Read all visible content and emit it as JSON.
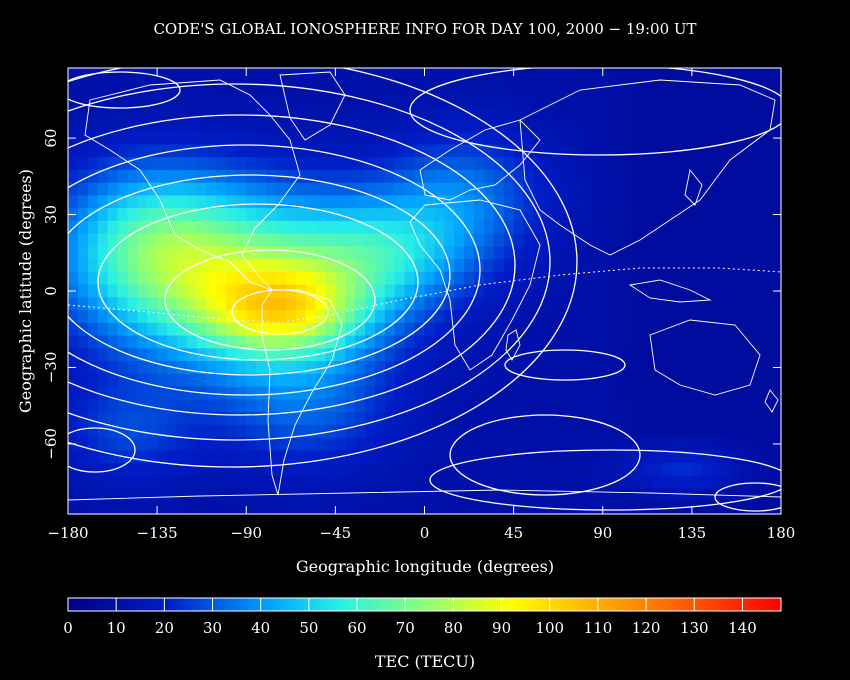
{
  "chart_data": {
    "type": "heatmap",
    "title": "CODE'S GLOBAL IONOSPHERE INFO FOR DAY 100, 2000 − 19:00 UT",
    "xlabel": "Geographic longitude (degrees)",
    "ylabel": "Geographic latitude (degrees)",
    "xlim": [
      -180,
      180
    ],
    "ylim": [
      -87.5,
      87.5
    ],
    "x_ticks": [
      "−180",
      "−135",
      "−90",
      "−45",
      "0",
      "45",
      "90",
      "135",
      "180"
    ],
    "x_tick_values": [
      -180,
      -135,
      -90,
      -45,
      0,
      45,
      90,
      135,
      180
    ],
    "y_ticks": [
      "−60",
      "−30",
      "0",
      "30",
      "60"
    ],
    "y_tick_values": [
      -60,
      -30,
      0,
      30,
      60
    ],
    "colorbar": {
      "label": "TEC (TECU)",
      "range": [
        0,
        148
      ],
      "tick_labels": [
        "0",
        "10",
        "20",
        "30",
        "40",
        "50",
        "60",
        "70",
        "80",
        "90",
        "100",
        "110",
        "120",
        "130",
        "140"
      ],
      "tick_values": [
        0,
        10,
        20,
        30,
        40,
        50,
        60,
        70,
        80,
        90,
        100,
        110,
        120,
        130,
        140
      ]
    },
    "features": {
      "tec_maxima": [
        {
          "lon": -75,
          "lat": -8,
          "tec": 120
        },
        {
          "lon": -110,
          "lat": 12,
          "tec": 88
        }
      ],
      "tec_minima": [
        {
          "lon": 115,
          "lat": 50,
          "tec": 12
        },
        {
          "lon": 60,
          "lat": -60,
          "tec": 10
        },
        {
          "lon": 90,
          "lat": -25,
          "tec": 12
        }
      ],
      "contour_lines": "white",
      "continent_outlines": "white"
    }
  }
}
